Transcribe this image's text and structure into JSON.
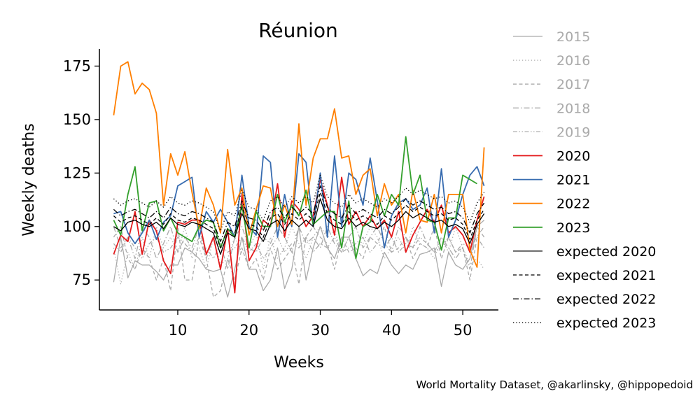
{
  "chart_data": {
    "type": "line",
    "title": "Réunion",
    "xlabel": "Weeks",
    "ylabel": "Weekly deaths",
    "xlim": [
      -1,
      55
    ],
    "ylim": [
      61,
      183
    ],
    "xticks": [
      10,
      20,
      30,
      40,
      50
    ],
    "yticks": [
      75,
      100,
      125,
      150,
      175
    ],
    "grid": false,
    "legend_position": "right-outside",
    "source_note": "World Mortality Dataset, @akarlinsky, @hippopedoid",
    "series": [
      {
        "name": "2015",
        "color": "#aaaaaa",
        "dash": "solid",
        "width": 1.3,
        "values": [
          74,
          95,
          76,
          84,
          82,
          82,
          79,
          75,
          82,
          82,
          90,
          88,
          85,
          80,
          79,
          80,
          67,
          80,
          95,
          80,
          80,
          70,
          75,
          90,
          71,
          80,
          100,
          75,
          90,
          100,
          90,
          85,
          95,
          95,
          85,
          77,
          80,
          78,
          88,
          82,
          78,
          82,
          80,
          87,
          88,
          90,
          72,
          88,
          82,
          80,
          85,
          100,
          103
        ]
      },
      {
        "name": "2016",
        "color": "#aaaaaa",
        "dash": "dotted",
        "width": 1.3,
        "values": [
          90,
          73,
          88,
          80,
          95,
          85,
          100,
          90,
          95,
          88,
          100,
          85,
          90,
          80,
          95,
          82,
          85,
          95,
          88,
          90,
          97,
          80,
          95,
          85,
          90,
          100,
          92,
          85,
          95,
          100,
          95,
          98,
          88,
          95,
          90,
          92,
          100,
          95,
          85,
          90,
          95,
          88,
          100,
          92,
          90,
          85,
          95,
          88,
          100,
          90,
          82,
          85,
          80
        ]
      },
      {
        "name": "2017",
        "color": "#aaaaaa",
        "dash": "dashed",
        "width": 1.3,
        "values": [
          95,
          100,
          85,
          80,
          90,
          85,
          75,
          85,
          70,
          100,
          75,
          75,
          95,
          85,
          67,
          70,
          85,
          75,
          90,
          80,
          85,
          75,
          90,
          80,
          85,
          90,
          73,
          95,
          100,
          95,
          92,
          80,
          95,
          88,
          90,
          85,
          95,
          92,
          100,
          88,
          90,
          95,
          85,
          92,
          90,
          100,
          85,
          95,
          88,
          90,
          75,
          95,
          100
        ]
      },
      {
        "name": "2018",
        "color": "#aaaaaa",
        "dash": "dashdot",
        "width": 1.3,
        "values": [
          100,
          90,
          95,
          85,
          100,
          95,
          85,
          92,
          100,
          88,
          95,
          90,
          100,
          85,
          95,
          92,
          80,
          95,
          100,
          90,
          88,
          95,
          92,
          100,
          95,
          88,
          100,
          92,
          95,
          90,
          100,
          92,
          88,
          95,
          100,
          90,
          95,
          100,
          92,
          88,
          100,
          95,
          90,
          100,
          92,
          88,
          95,
          90,
          85,
          90,
          80,
          100,
          95
        ]
      },
      {
        "name": "2019",
        "color": "#aaaaaa",
        "dash": "dashdotdot",
        "width": 1.3,
        "values": [
          92,
          88,
          95,
          90,
          85,
          92,
          95,
          88,
          90,
          95,
          92,
          88,
          95,
          90,
          85,
          92,
          88,
          90,
          95,
          88,
          92,
          85,
          90,
          95,
          88,
          92,
          90,
          95,
          88,
          92,
          90,
          95,
          88,
          90,
          92,
          95,
          88,
          92,
          90,
          95,
          88,
          92,
          90,
          95,
          92,
          88,
          90,
          95,
          88,
          92,
          90,
          95,
          90
        ]
      },
      {
        "name": "2020",
        "color": "#e41a1c",
        "dash": "solid",
        "width": 1.8,
        "values": [
          87,
          96,
          93,
          107,
          87,
          103,
          98,
          84,
          78,
          102,
          101,
          103,
          103,
          87,
          95,
          80,
          99,
          69,
          115,
          84,
          90,
          103,
          100,
          120,
          95,
          112,
          108,
          100,
          105,
          122,
          110,
          96,
          123,
          101,
          107,
          100,
          105,
          99,
          103,
          95,
          107,
          88,
          96,
          102,
          108,
          102,
          110,
          97,
          100,
          96,
          88,
          103,
          114
        ]
      },
      {
        "name": "2021",
        "color": "#386cb0",
        "dash": "solid",
        "width": 1.8,
        "values": [
          106,
          107,
          97,
          92,
          97,
          103,
          94,
          102,
          105,
          119,
          121,
          123,
          95,
          107,
          102,
          108,
          102,
          95,
          124,
          100,
          96,
          133,
          130,
          95,
          115,
          100,
          134,
          130,
          100,
          125,
          95,
          133,
          100,
          125,
          122,
          110,
          132,
          112,
          90,
          105,
          111,
          113,
          108,
          110,
          118,
          97,
          127,
          95,
          103,
          115,
          124,
          128,
          119
        ]
      },
      {
        "name": "2022",
        "color": "#ff7f00",
        "dash": "solid",
        "width": 1.8,
        "values": [
          152,
          175,
          177,
          162,
          167,
          164,
          153,
          110,
          134,
          124,
          135,
          116,
          99,
          118,
          110,
          97,
          136,
          110,
          118,
          96,
          108,
          119,
          118,
          100,
          110,
          101,
          148,
          110,
          132,
          141,
          141,
          155,
          132,
          133,
          115,
          124,
          127,
          105,
          120,
          110,
          115,
          97,
          117,
          103,
          102,
          115,
          97,
          115,
          115,
          115,
          89,
          81,
          137
        ]
      },
      {
        "name": "2023",
        "color": "#33a02c",
        "dash": "solid",
        "width": 1.8,
        "values": [
          103,
          96,
          115,
          128,
          98,
          111,
          112,
          98,
          104,
          97,
          95,
          93,
          100,
          103,
          102,
          90,
          99,
          95,
          110,
          90,
          107,
          100,
          100,
          115,
          102,
          110,
          105,
          117,
          101,
          104,
          107,
          107,
          90,
          112,
          85,
          100,
          102,
          115,
          105,
          115,
          110,
          142,
          115,
          124,
          103,
          102,
          89,
          104,
          104,
          124,
          122,
          120
        ]
      },
      {
        "name": "expected 2020",
        "color": "#000000",
        "dash": "solid",
        "width": 1.3,
        "values": [
          100,
          98,
          102,
          103,
          101,
          100,
          102,
          99,
          104,
          101,
          100,
          102,
          101,
          99,
          97,
          87,
          97,
          95,
          106,
          99,
          98,
          93,
          101,
          103,
          98,
          103,
          100,
          103,
          100,
          113,
          103,
          100,
          99,
          104,
          100,
          102,
          100,
          99,
          102,
          100,
          103,
          107,
          104,
          106,
          104,
          102,
          103,
          100,
          101,
          99,
          92,
          101,
          106
        ]
      },
      {
        "name": "expected 2021",
        "color": "#000000",
        "dash": "dashed",
        "width": 1.3,
        "values": [
          105,
          102,
          104,
          105,
          103,
          101,
          104,
          101,
          106,
          103,
          102,
          104,
          103,
          101,
          99,
          90,
          99,
          97,
          109,
          101,
          100,
          95,
          104,
          106,
          101,
          106,
          103,
          106,
          103,
          116,
          106,
          103,
          101,
          107,
          103,
          105,
          103,
          101,
          105,
          103,
          106,
          110,
          107,
          109,
          107,
          105,
          106,
          103,
          104,
          101,
          94,
          103,
          108
        ]
      },
      {
        "name": "expected 2022",
        "color": "#000000",
        "dash": "dashdot",
        "width": 1.3,
        "values": [
          108,
          105,
          107,
          108,
          106,
          104,
          107,
          104,
          109,
          106,
          105,
          107,
          106,
          104,
          102,
          93,
          102,
          100,
          112,
          104,
          103,
          98,
          107,
          109,
          104,
          109,
          106,
          109,
          106,
          119,
          109,
          106,
          104,
          110,
          106,
          108,
          106,
          104,
          108,
          106,
          109,
          113,
          110,
          112,
          110,
          108,
          109,
          106,
          107,
          104,
          97,
          106,
          111
        ]
      },
      {
        "name": "expected 2023",
        "color": "#000000",
        "dash": "dotted",
        "width": 1.3,
        "values": [
          113,
          110,
          112,
          113,
          111,
          109,
          112,
          109,
          114,
          111,
          110,
          112,
          111,
          109,
          107,
          98,
          107,
          105,
          117,
          109,
          108,
          103,
          112,
          114,
          109,
          114,
          111,
          114,
          111,
          124,
          114,
          111,
          109,
          115,
          111,
          113,
          111,
          109,
          113,
          111,
          114,
          118,
          115,
          117,
          115,
          113,
          114,
          111,
          112,
          109,
          102,
          111,
          116
        ]
      }
    ]
  }
}
